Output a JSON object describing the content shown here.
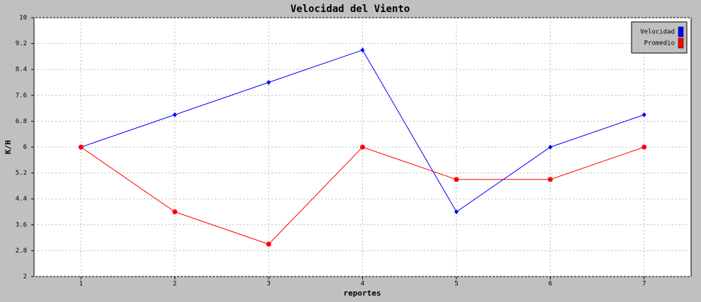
{
  "chart_data": {
    "type": "line",
    "title": "Velocidad del Viento",
    "x_label": "reportes",
    "y_label": "K/H",
    "categories": [
      "1",
      "2",
      "3",
      "4",
      "5",
      "6",
      "7"
    ],
    "series": [
      {
        "name": "Velocidad",
        "color": "#0000ff",
        "marker": "diamond",
        "values": [
          6,
          7,
          8,
          9,
          4,
          6,
          7
        ]
      },
      {
        "name": "Promedio",
        "color": "#ff0000",
        "marker": "circle",
        "values": [
          6,
          4,
          3,
          6,
          5,
          5,
          6
        ]
      }
    ],
    "ylim": [
      2,
      10
    ],
    "yticks": [
      2,
      2.8,
      3.6,
      4.4,
      5.2,
      6,
      6.8,
      7.6,
      8.4,
      9.2,
      10
    ],
    "grid": true,
    "legend": "top-right"
  }
}
